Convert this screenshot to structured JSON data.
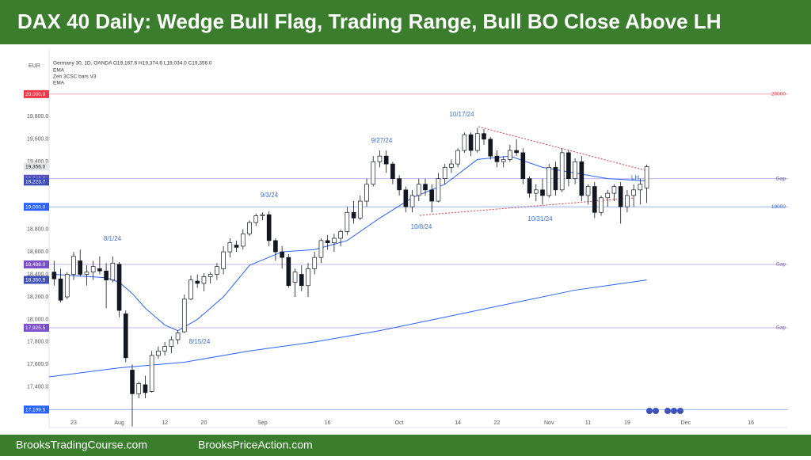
{
  "chart_data": {
    "type": "candlestick",
    "title": "DAX 40 Daily: Wedge Bull Flag, Trading Range, Bull BO Close Above LH",
    "currency": "EUR",
    "info": "Germany 30, 1D, OANDA  O19,167.6  H19,374.6  L19,034.0  C19,356.0",
    "indicators": [
      "EMA",
      "Zen 3CSC bars V3",
      "EMA"
    ],
    "footer_left": "BrooksTradingCourse.com",
    "footer_right": "BrooksPriceAction.com",
    "up_color": "#ffffff",
    "down_color": "#131722",
    "ema_color": "#2962ff",
    "xlim": [
      -0.77,
      112.7
    ],
    "xticks": [
      {
        "value": 3,
        "label": "23"
      },
      {
        "value": 10,
        "label": "Aug"
      },
      {
        "value": 17,
        "label": "12"
      },
      {
        "value": 23,
        "label": "20"
      },
      {
        "value": 32,
        "label": "Sep"
      },
      {
        "value": 42,
        "label": "16"
      },
      {
        "value": 53,
        "label": "Oct"
      },
      {
        "value": 62,
        "label": "14"
      },
      {
        "value": 68,
        "label": "22"
      },
      {
        "value": 76,
        "label": "Nov"
      },
      {
        "value": 82,
        "label": "11"
      },
      {
        "value": 88,
        "label": "19"
      },
      {
        "value": 97,
        "label": "Dec"
      },
      {
        "value": 107,
        "label": "16"
      }
    ],
    "ylim": [
      17040,
      20400
    ],
    "yticks": [
      {
        "value": 17400,
        "label": "17,400.0"
      },
      {
        "value": 17600,
        "label": "17,600.0"
      },
      {
        "value": 17800,
        "label": "17,800.0"
      },
      {
        "value": 18000,
        "label": "18,000.0"
      },
      {
        "value": 18200,
        "label": "18,200.0"
      },
      {
        "value": 18400,
        "label": "18,400.0"
      },
      {
        "value": 18600,
        "label": "18,600.0"
      },
      {
        "value": 18800,
        "label": "18,800.0"
      },
      {
        "value": 19400,
        "label": "19,400.0"
      },
      {
        "value": 19600,
        "label": "19,600.0"
      },
      {
        "value": 19800,
        "label": "19,800.0"
      }
    ],
    "grid": false,
    "open": [
      18420,
      18360,
      18200,
      18400,
      18520,
      18400,
      18420,
      18450,
      18430,
      18350,
      18490,
      18050,
      17550,
      17340,
      17420,
      17360,
      17680,
      17720,
      17760,
      17820,
      17890,
      18180,
      18340,
      18320,
      18380,
      18400,
      18450,
      18600,
      18660,
      18650,
      18760,
      18860,
      18920,
      18930,
      18700,
      18600,
      18550,
      18330,
      18400,
      18300,
      18450,
      18550,
      18700,
      18680,
      18720,
      18780,
      18950,
      18900,
      19050,
      19200,
      19400,
      19450,
      19380,
      19250,
      19150,
      19000,
      19100,
      19200,
      19150,
      19050,
      19250,
      19350,
      19380,
      19500,
      19640,
      19500,
      19650,
      19600,
      19450,
      19400,
      19420,
      19500,
      19480,
      19250,
      19120,
      19150,
      19100,
      19350,
      19150,
      19480,
      19250,
      19400,
      19100,
      19180,
      18950,
      19080,
      19120,
      19180,
      19000,
      19100,
      19150,
      19167.6
    ],
    "high": [
      18520,
      18450,
      18420,
      18600,
      18620,
      18480,
      18520,
      18560,
      18500,
      18560,
      18510,
      18080,
      17600,
      17450,
      17500,
      17720,
      17760,
      17800,
      17850,
      17900,
      18220,
      18390,
      18400,
      18410,
      18420,
      18500,
      18650,
      18720,
      18700,
      18800,
      18880,
      18940,
      18950,
      18960,
      18720,
      18650,
      18580,
      18450,
      18480,
      18500,
      18600,
      18720,
      18750,
      18760,
      18800,
      19000,
      19050,
      19100,
      19250,
      19450,
      19500,
      19500,
      19400,
      19280,
      19180,
      19150,
      19250,
      19250,
      19200,
      19300,
      19380,
      19420,
      19520,
      19660,
      19660,
      19700,
      19690,
      19620,
      19500,
      19450,
      19550,
      19600,
      19520,
      19270,
      19200,
      19250,
      19380,
      19400,
      19520,
      19500,
      19430,
      19450,
      19200,
      19220,
      19100,
      19150,
      19200,
      19220,
      19150,
      19200,
      19250,
      19374.6
    ],
    "low": [
      18300,
      18150,
      18180,
      18350,
      18380,
      18300,
      18350,
      18400,
      18100,
      18330,
      18020,
      17620,
      17050,
      17300,
      17300,
      17350,
      17650,
      17680,
      17700,
      17780,
      17880,
      18170,
      18280,
      18250,
      18320,
      18350,
      18400,
      18550,
      18600,
      18620,
      18740,
      18830,
      18880,
      18650,
      18520,
      18450,
      18280,
      18200,
      18250,
      18200,
      18400,
      18500,
      18620,
      18600,
      18650,
      18750,
      18850,
      18880,
      19000,
      19180,
      19350,
      19300,
      19200,
      19100,
      18950,
      18950,
      19050,
      19100,
      18950,
      19040,
      19200,
      19300,
      19350,
      19480,
      19450,
      19480,
      19550,
      19420,
      19350,
      19350,
      19400,
      19450,
      19200,
      19080,
      19050,
      19020,
      19080,
      19100,
      19130,
      19180,
      19200,
      19050,
      19020,
      18900,
      18920,
      19000,
      19050,
      18850,
      18950,
      19000,
      19020,
      19034
    ],
    "close": [
      18360,
      18170,
      18400,
      18560,
      18400,
      18420,
      18470,
      18430,
      18350,
      18500,
      18080,
      17660,
      17340,
      17430,
      17350,
      17680,
      17720,
      17760,
      17820,
      17880,
      18180,
      18350,
      18320,
      18380,
      18400,
      18470,
      18600,
      18680,
      18640,
      18760,
      18860,
      18920,
      18930,
      18700,
      18600,
      18550,
      18300,
      18420,
      18300,
      18450,
      18550,
      18700,
      18680,
      18720,
      18780,
      18950,
      18900,
      19050,
      19200,
      19400,
      19450,
      19380,
      19250,
      19150,
      19000,
      19100,
      19200,
      19150,
      19050,
      19250,
      19350,
      19380,
      19500,
      19640,
      19500,
      19650,
      19600,
      19450,
      19400,
      19420,
      19500,
      19480,
      19250,
      19120,
      19150,
      19100,
      19350,
      19150,
      19480,
      19250,
      19400,
      19100,
      19180,
      18950,
      19080,
      19120,
      19180,
      19000,
      19100,
      19150,
      19200,
      19356
    ],
    "series": [
      {
        "name": "EMA",
        "color": "#2962ff",
        "x": [
          0,
          8,
          10,
          12,
          14,
          17,
          19,
          22,
          26,
          30,
          35,
          40,
          45,
          50,
          55,
          60,
          65,
          70,
          75,
          80,
          85,
          91
        ],
        "values": [
          18400,
          18370,
          18330,
          18230,
          18100,
          17950,
          17900,
          18000,
          18200,
          18480,
          18600,
          18620,
          18700,
          18900,
          19080,
          19200,
          19420,
          19450,
          19350,
          19300,
          19250,
          19230
        ]
      },
      {
        "name": "EMA",
        "color": "#2962ff",
        "x": [
          -0.77,
          10,
          20,
          30,
          40,
          50,
          60,
          70,
          80,
          91
        ],
        "values": [
          17490,
          17570,
          17620,
          17720,
          17800,
          17900,
          18020,
          18140,
          18260,
          18350
        ]
      }
    ],
    "levels": [
      {
        "value": 20000,
        "label": "20,000.0",
        "color": "#f23645",
        "line": true,
        "right_label": "20000"
      },
      {
        "value": 19356,
        "label": "19,356.0",
        "color": "#e6e6e6",
        "line": false
      },
      {
        "value": 19249,
        "label": "19,249.0",
        "color": "#5b4fc4",
        "line": true,
        "right_label": "Gap"
      },
      {
        "value": 19223.7,
        "label": "19,223.7",
        "color": "#3f51b5",
        "line": false
      },
      {
        "value": 19000,
        "label": "19,000.0",
        "color": "#2962ff",
        "line": true,
        "right_label": "19000"
      },
      {
        "value": 18488,
        "label": "18,488.0",
        "color": "#7b4fc9",
        "line": true,
        "right_label": "Gap"
      },
      {
        "value": 18350.9,
        "label": "18,350.9",
        "color": "#3f51b5",
        "line": false
      },
      {
        "value": 17925.5,
        "label": "17,925.5",
        "color": "#7b4fc9",
        "line": true,
        "right_label": "Gap"
      },
      {
        "value": 17199.5,
        "label": "17,199.5",
        "color": "#2962ff",
        "line": true
      }
    ],
    "annotations": [
      "8/1/24",
      "8/15/24",
      "9/3/24",
      "9/27/24",
      "10/17/24",
      "10/8/24",
      "10/31/24",
      "LH"
    ]
  }
}
